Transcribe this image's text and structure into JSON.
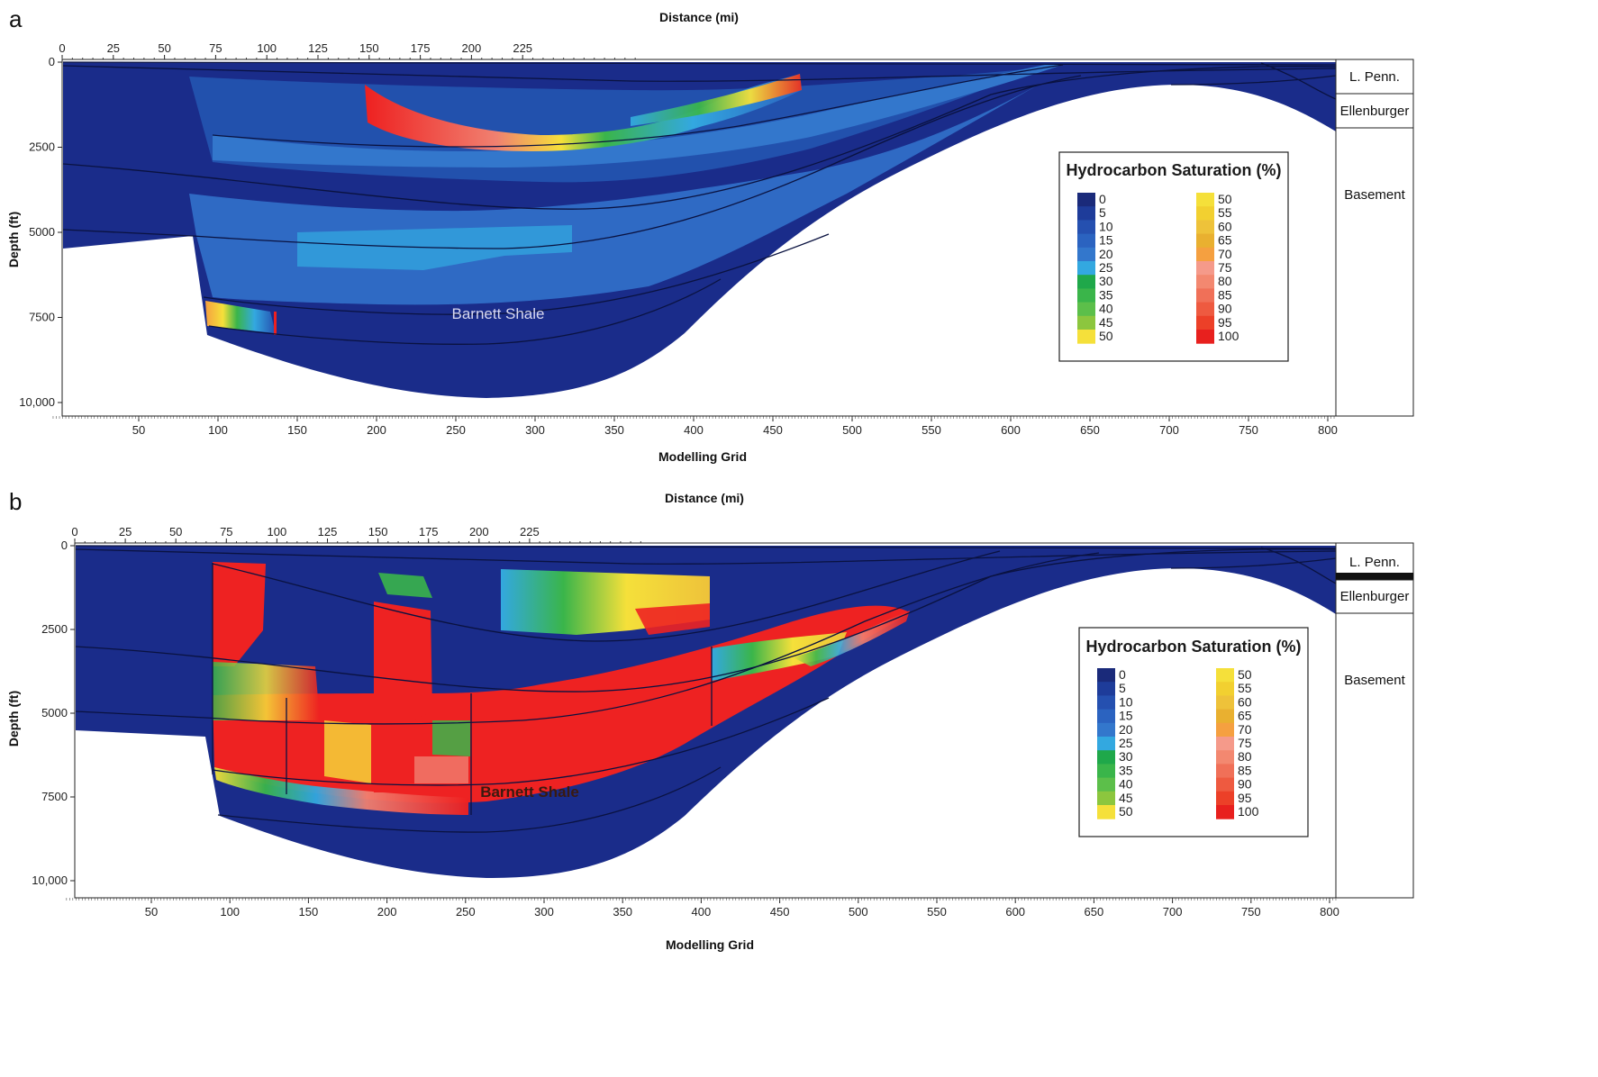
{
  "panels": [
    {
      "letter": "a",
      "top_axis_title": "Distance (mi)",
      "bottom_axis_title": "Modelling Grid",
      "y_axis_title": "Depth (ft)",
      "formation_label": "Barnett Shale",
      "legend_title": "Hydrocarbon Saturation (%)",
      "strat_labels": [
        "L. Penn.",
        "Ellenburger",
        "Basement"
      ]
    },
    {
      "letter": "b",
      "top_axis_title": "Distance (mi)",
      "bottom_axis_title": "Modelling Grid",
      "y_axis_title": "Depth (ft)",
      "formation_label": "Barnett Shale",
      "legend_title": "Hydrocarbon Saturation (%)",
      "strat_labels": [
        "L. Penn.",
        "Ellenburger",
        "Basement"
      ]
    }
  ],
  "distance_ticks": [
    "0",
    "25",
    "50",
    "75",
    "100",
    "125",
    "150",
    "175",
    "200",
    "225"
  ],
  "grid_ticks": [
    "50",
    "100",
    "150",
    "200",
    "250",
    "300",
    "350",
    "400",
    "450",
    "500",
    "550",
    "600",
    "650",
    "700",
    "750",
    "800"
  ],
  "depth_ticks": [
    "0",
    "2500",
    "5000",
    "7500",
    "10,000"
  ],
  "legend_left_values": [
    "0",
    "5",
    "10",
    "15",
    "20",
    "25",
    "30",
    "35",
    "40",
    "45",
    "50"
  ],
  "legend_right_values": [
    "50",
    "55",
    "60",
    "65",
    "70",
    "75",
    "80",
    "85",
    "90",
    "95",
    "100"
  ],
  "legend_left_colors": [
    "#1a2a7a",
    "#1e3c9a",
    "#2550b0",
    "#2b63c0",
    "#3377cc",
    "#33a8e0",
    "#1fa84a",
    "#3ab54a",
    "#5cbf4a",
    "#8cc63e",
    "#f5e03a"
  ],
  "legend_right_colors": [
    "#f5e03a",
    "#f2d030",
    "#eec23a",
    "#e9b030",
    "#f5a040",
    "#f59a8a",
    "#f38870",
    "#f07058",
    "#ee5a40",
    "#ec4028",
    "#e8201e"
  ],
  "colors": {
    "background_blue": "#1a2c8a",
    "saturated_red": "#ee2222",
    "layer_line": "#0a1240"
  }
}
